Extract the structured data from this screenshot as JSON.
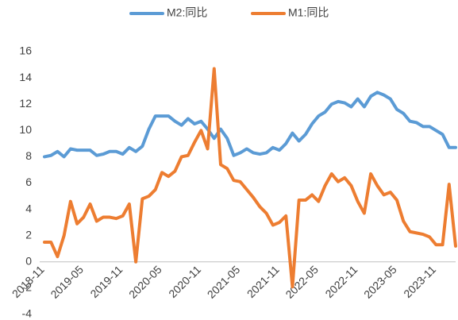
{
  "chart_data": {
    "type": "line",
    "categories": [
      "2018-11",
      null,
      null,
      null,
      null,
      null,
      "2019-05",
      null,
      null,
      null,
      null,
      null,
      "2019-11",
      null,
      null,
      null,
      null,
      null,
      "2020-05",
      null,
      null,
      null,
      null,
      null,
      "2020-11",
      null,
      null,
      null,
      null,
      null,
      "2021-05",
      null,
      null,
      null,
      null,
      null,
      "2021-11",
      null,
      null,
      null,
      null,
      null,
      "2022-05",
      null,
      null,
      null,
      null,
      null,
      "2022-11",
      null,
      null,
      null,
      null,
      null,
      "2023-05",
      null,
      null,
      null,
      null,
      null,
      "2023-11",
      null,
      null,
      null
    ],
    "series": [
      {
        "name": "M2:同比",
        "color": "#5b9bd5",
        "values": [
          8.0,
          8.1,
          8.4,
          8.0,
          8.6,
          8.5,
          8.5,
          8.5,
          8.1,
          8.2,
          8.4,
          8.4,
          8.2,
          8.7,
          8.4,
          8.8,
          10.1,
          11.1,
          11.1,
          11.1,
          10.7,
          10.4,
          10.9,
          10.5,
          10.7,
          10.1,
          9.4,
          10.1,
          9.4,
          8.1,
          8.3,
          8.6,
          8.3,
          8.2,
          8.3,
          8.7,
          8.5,
          9.0,
          9.8,
          9.2,
          9.7,
          10.5,
          11.1,
          11.4,
          12.0,
          12.2,
          12.1,
          11.8,
          12.4,
          11.8,
          12.6,
          12.9,
          12.7,
          12.4,
          11.6,
          11.3,
          10.7,
          10.6,
          10.3,
          10.3,
          10.0,
          9.7,
          8.7,
          8.7
        ]
      },
      {
        "name": "M1:同比",
        "color": "#ed7d31",
        "values": [
          1.5,
          1.5,
          0.4,
          2.0,
          4.6,
          2.9,
          3.4,
          4.4,
          3.1,
          3.4,
          3.4,
          3.3,
          3.5,
          4.4,
          0.0,
          4.8,
          5.0,
          5.5,
          6.8,
          6.5,
          6.9,
          8.0,
          8.1,
          9.1,
          10.0,
          8.6,
          14.7,
          7.4,
          7.1,
          6.2,
          6.1,
          5.5,
          4.9,
          4.2,
          3.7,
          2.8,
          3.0,
          3.5,
          -1.9,
          4.7,
          4.7,
          5.1,
          4.6,
          5.8,
          6.7,
          6.1,
          6.4,
          5.8,
          4.6,
          3.7,
          6.7,
          5.8,
          5.1,
          5.3,
          4.7,
          3.1,
          2.3,
          2.2,
          2.1,
          1.9,
          1.3,
          1.3,
          5.9,
          1.2
        ]
      }
    ],
    "ylim": [
      -4,
      16
    ],
    "yticks": [
      -4,
      -2,
      0,
      2,
      4,
      6,
      8,
      10,
      12,
      14,
      16
    ],
    "grid": false,
    "legend": "top"
  }
}
